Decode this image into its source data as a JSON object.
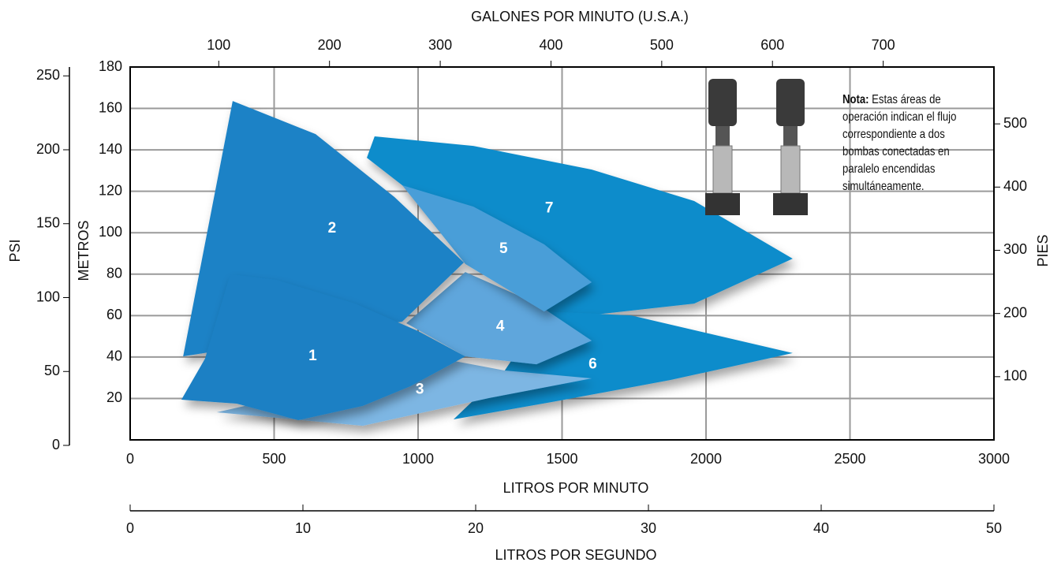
{
  "chart_data": {
    "type": "polygon",
    "x_label": "LITROS POR MINUTO",
    "y_label": "METROS",
    "xlim": [
      0,
      3000
    ],
    "xticks": [
      0,
      500,
      1000,
      1500,
      2000,
      2500,
      3000
    ],
    "ylim": [
      0,
      180
    ],
    "yticks": [
      20,
      40,
      60,
      80,
      100,
      120,
      140,
      160,
      180
    ],
    "grid": true,
    "top_axis": {
      "label": "GALONES POR MINUTO (U.S.A.)",
      "lim": [
        20,
        800
      ],
      "ticks": [
        100,
        200,
        300,
        400,
        500,
        600,
        700
      ]
    },
    "y2_label": "PIES",
    "y2lim": [
      0,
      590
    ],
    "y2ticks": [
      100,
      200,
      300,
      400,
      500
    ],
    "psi_axis": {
      "label": "PSI",
      "lim": [
        0,
        256
      ],
      "ticks": [
        0,
        50,
        100,
        150,
        200,
        250
      ]
    },
    "lps_axis": {
      "label": "LITROS POR SEGUNDO",
      "lim": [
        0,
        50
      ],
      "ticks": [
        0,
        10,
        20,
        30,
        40,
        50
      ]
    },
    "series": [
      {
        "name": "1",
        "color": "#1a80c4",
        "x": [
          178,
          260,
          348,
          507,
          781,
          1000,
          1164,
          973,
          808,
          584,
          370
        ],
        "y": [
          19.4,
          39.2,
          79.9,
          77.2,
          65.8,
          52.5,
          40.3,
          25.9,
          16.4,
          9.5,
          17.5
        ]
      },
      {
        "name": "2",
        "color": "#1b82c6",
        "x": [
          184,
          356,
          644,
          918,
          1159,
          945
        ],
        "y": [
          40.3,
          163.6,
          147.6,
          117.2,
          85.6,
          57.1
        ]
      },
      {
        "name": "3",
        "color": "#7db6e3",
        "x": [
          301,
          699,
          1082,
          1301,
          1603,
          1247,
          808
        ],
        "y": [
          13.3,
          25.9,
          39.2,
          33.5,
          29.7,
          20.2,
          6.8
        ]
      },
      {
        "name": "4",
        "color": "#5ea6dc",
        "x": [
          959,
          1164,
          1411,
          1603,
          1411,
          1164
        ],
        "y": [
          56.3,
          81,
          65.8,
          47.9,
          36.5,
          40.3
        ]
      },
      {
        "name": "5",
        "color": "#4a9ed8",
        "x": [
          945,
          1192,
          1438,
          1603,
          1438,
          1164
        ],
        "y": [
          122.9,
          112.6,
          94.4,
          76.1,
          62,
          84.9
        ]
      },
      {
        "name": "6",
        "color": "#0f8ccb",
        "x": [
          1438,
          1740,
          2301,
          1877,
          1466,
          1123,
          1301
        ],
        "y": [
          62,
          60.1,
          41.9,
          28.9,
          18.3,
          9.9,
          33.5
        ]
      },
      {
        "name": "7",
        "color": "#0f8ccb",
        "x": [
          822,
          849,
          1192,
          1603,
          1959,
          2301,
          1959,
          1466,
          945
        ],
        "y": [
          136.2,
          146.5,
          141.9,
          130.5,
          115.3,
          87.5,
          65.8,
          58.2,
          122.9
        ]
      }
    ],
    "note": {
      "label": "Nota:",
      "lines": [
        "Estas áreas de",
        "operación indican el flujo",
        "correspondiente a dos",
        "bombas conectadas en",
        "paralelo encendidas",
        "simultáneamente."
      ]
    }
  }
}
